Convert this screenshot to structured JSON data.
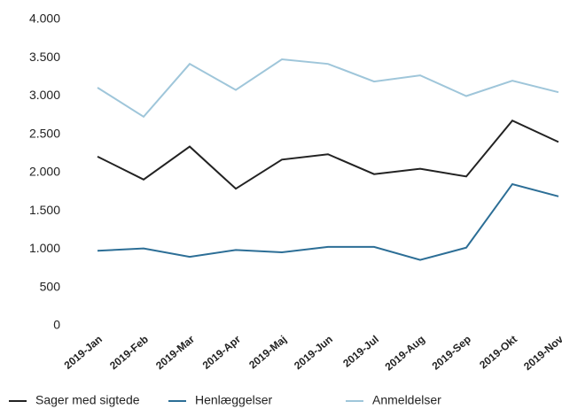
{
  "chart_data": {
    "type": "line",
    "categories": [
      "2019-Jan",
      "2019-Feb",
      "2019-Mar",
      "2019-Apr",
      "2019-Maj",
      "2019-Jun",
      "2019-Jul",
      "2019-Aug",
      "2019-Sep",
      "2019-Okt",
      "2019-Nov"
    ],
    "series": [
      {
        "name": "Sager med sigtede",
        "color": "#222222",
        "values": [
          2210,
          1910,
          2340,
          1790,
          2170,
          2240,
          1980,
          2050,
          1950,
          2680,
          2400
        ]
      },
      {
        "name": "Henlæggelser",
        "color": "#2c6e96",
        "values": [
          980,
          1010,
          900,
          990,
          960,
          1030,
          1030,
          860,
          1020,
          1850,
          1690
        ]
      },
      {
        "name": "Anmeldelser",
        "color": "#9fc6da",
        "values": [
          3110,
          2730,
          3420,
          3080,
          3480,
          3420,
          3190,
          3270,
          3000,
          3200,
          3050
        ]
      }
    ],
    "ylim": [
      0,
      4000
    ],
    "yticks": [
      0,
      500,
      {
        "value": 1000,
        "label": "1.000"
      },
      {
        "value": 1500,
        "label": "1.500"
      },
      {
        "value": 2000,
        "label": "2.000"
      },
      {
        "value": 2500,
        "label": "2.500"
      },
      {
        "value": 3000,
        "label": "3.000"
      },
      {
        "value": 3500,
        "label": "3.500"
      },
      {
        "value": 4000,
        "label": "4.000"
      }
    ],
    "grid": false,
    "legend": "bottom"
  }
}
